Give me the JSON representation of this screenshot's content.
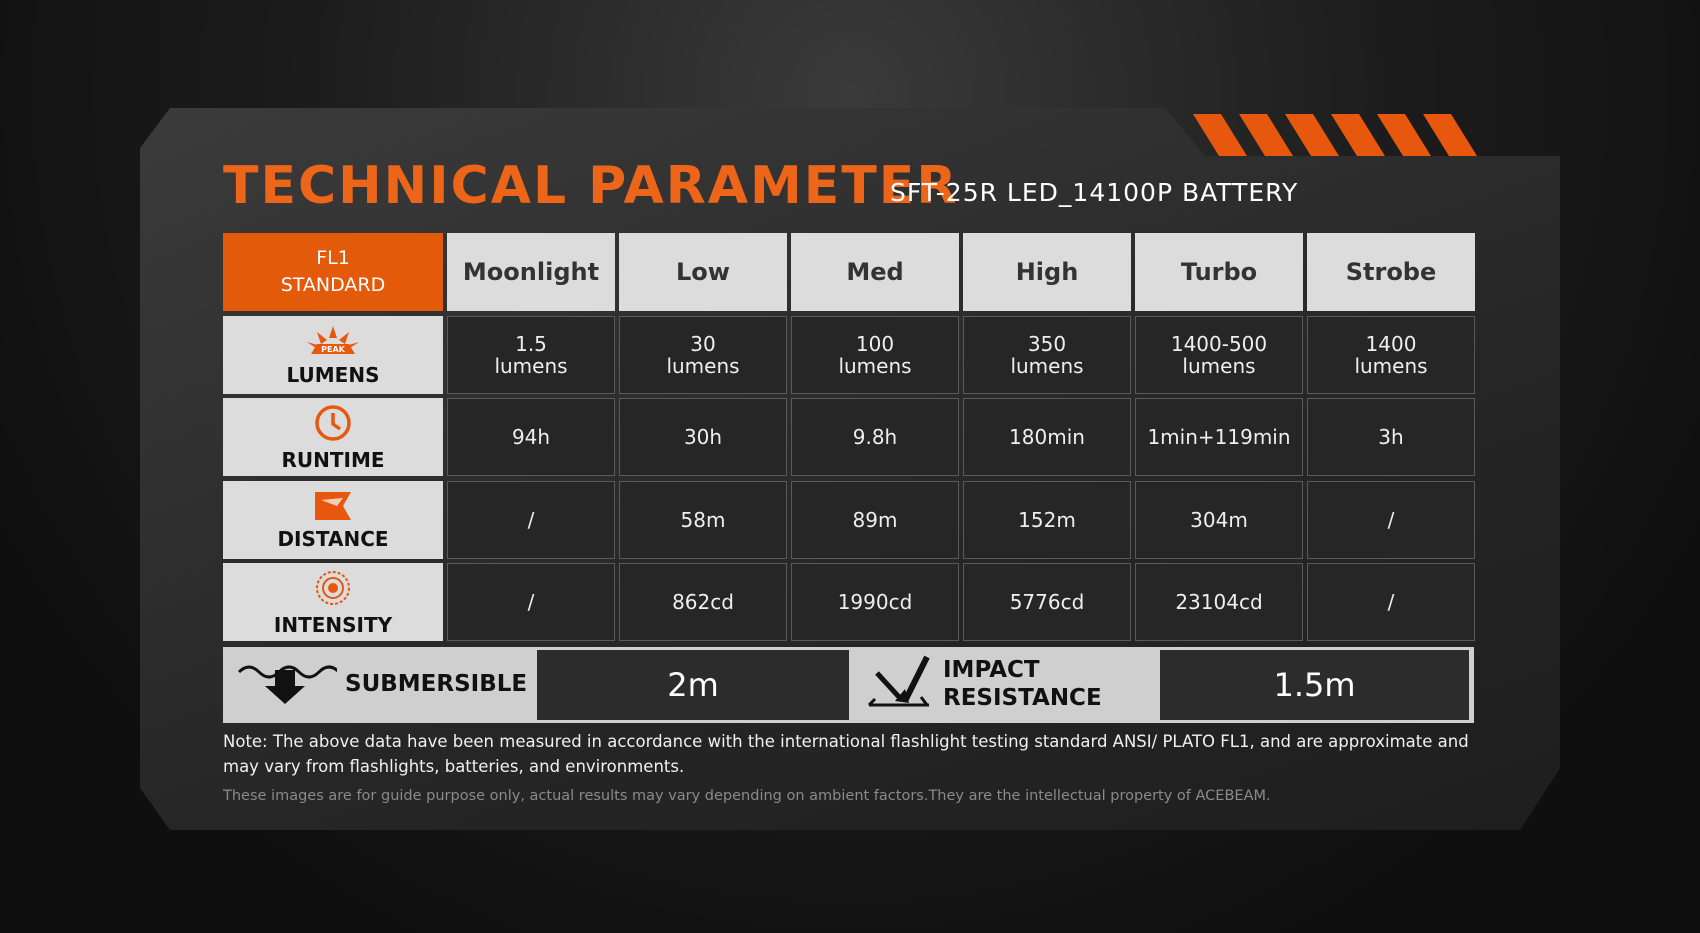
{
  "header": {
    "title": "TECHNICAL PARAMETER",
    "subtitle": "SFT-25R LED_14100P BATTERY"
  },
  "table": {
    "corner": "FL1\nSTANDARD",
    "columns": [
      "Moonlight",
      "Low",
      "Med",
      "High",
      "Turbo",
      "Strobe"
    ],
    "peak": "PEAK",
    "rows": [
      {
        "label": "LUMENS",
        "cells": [
          "1.5\nlumens",
          "30\nlumens",
          "100\nlumens",
          "350\nlumens",
          "1400-500\nlumens",
          "1400\nlumens"
        ]
      },
      {
        "label": "RUNTIME",
        "cells": [
          "94h",
          "30h",
          "9.8h",
          "180min",
          "1min+119min",
          "3h"
        ]
      },
      {
        "label": "DISTANCE",
        "cells": [
          "/",
          "58m",
          "89m",
          "152m",
          "304m",
          "/"
        ]
      },
      {
        "label": "INTENSITY",
        "cells": [
          "/",
          "862cd",
          "1990cd",
          "5776cd",
          "23104cd",
          "/"
        ]
      }
    ]
  },
  "specs": [
    {
      "label": "SUBMERSIBLE",
      "value": "2m"
    },
    {
      "label": "IMPACT\nRESISTANCE",
      "value": "1.5m"
    }
  ],
  "footer": {
    "note": "Note: The above data have been measured in accordance with the international flashlight testing standard ANSI/ PLATO FL1, and are approximate and may vary from flashlights, batteries, and environments.",
    "disclaimer": "These images are for guide purpose only, actual results may vary depending on ambient factors.They are the intellectual property of ACEBEAM."
  }
}
